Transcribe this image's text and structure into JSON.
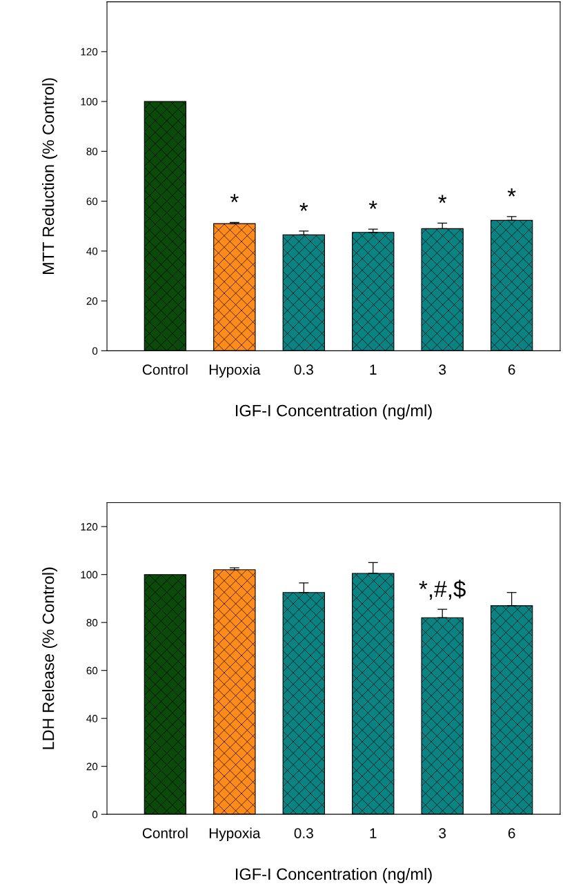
{
  "chart_data": [
    {
      "type": "bar",
      "xlabel": "IGF-I Concentration (ng/ml)",
      "ylabel": "MTT Reduction (% Control)",
      "categories": [
        "Control",
        "Hypoxia",
        "0.3",
        "1",
        "3",
        "6"
      ],
      "values": [
        100,
        51,
        46.5,
        47.5,
        49,
        52.3
      ],
      "colors": [
        "#0b4a0b",
        "#ff8c1a",
        "#0b8383",
        "#0b8383",
        "#0b8383",
        "#0b8383"
      ],
      "errors": [
        null,
        [
          51,
          51.5
        ],
        [
          46.5,
          48
        ],
        [
          47.5,
          48.8
        ],
        [
          49,
          51.2
        ],
        [
          52.3,
          53.8
        ]
      ],
      "ylim": [
        0,
        140
      ],
      "yticks": [
        0,
        20,
        40,
        60,
        80,
        100,
        120
      ],
      "grid": false,
      "annotations": [
        {
          "text": "*",
          "x": "Hypoxia",
          "y": 51.5
        },
        {
          "text": "*",
          "x": "0.3",
          "y": 48
        },
        {
          "text": "*",
          "x": "1",
          "y": 48.8
        },
        {
          "text": "*",
          "x": "3",
          "y": 51.2
        },
        {
          "text": "*",
          "x": "6",
          "y": 53.8
        }
      ]
    },
    {
      "type": "bar",
      "xlabel": "IGF-I Concentration (ng/ml)",
      "ylabel": "LDH Release (% Control)",
      "categories": [
        "Control",
        "Hypoxia",
        "0.3",
        "1",
        "3",
        "6"
      ],
      "values": [
        100,
        102,
        92.5,
        100.5,
        82,
        87
      ],
      "colors": [
        "#0b4a0b",
        "#ff8c1a",
        "#0b8383",
        "#0b8383",
        "#0b8383",
        "#0b8383"
      ],
      "errors": [
        null,
        [
          102,
          102.8
        ],
        [
          92.5,
          96.5
        ],
        [
          100.5,
          105
        ],
        [
          82,
          85.5
        ],
        [
          87,
          92.5
        ]
      ],
      "ylim": [
        0,
        130
      ],
      "yticks": [
        0,
        20,
        40,
        60,
        80,
        100,
        120
      ],
      "grid": false,
      "annotations": [
        {
          "text": "*,#,$",
          "x": "3",
          "y": 85.5
        }
      ]
    }
  ]
}
